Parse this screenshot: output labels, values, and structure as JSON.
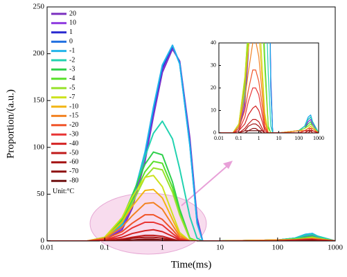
{
  "chart_data": {
    "type": "line",
    "x_label": "Time(ms)",
    "y_label": "Proportion/(a.u.)",
    "annotation": "Unit:°C",
    "log_x": true,
    "xlim": [
      0.01,
      1000
    ],
    "ylim": [
      0,
      250
    ],
    "xticks": [
      0.01,
      0.1,
      1,
      10,
      100,
      1000
    ],
    "yticks": [
      0,
      50,
      100,
      150,
      200,
      250
    ],
    "inset": {
      "xlim": [
        0.01,
        1000
      ],
      "ylim": [
        0,
        40
      ],
      "xticks": [
        0.01,
        0.1,
        1,
        10,
        100,
        1000
      ],
      "yticks": [
        0,
        10,
        20,
        30,
        40
      ]
    },
    "x": [
      0.01,
      0.05,
      0.1,
      0.2,
      0.3,
      0.5,
      0.7,
      1,
      1.5,
      2,
      3,
      4,
      5,
      10,
      100,
      200,
      300,
      400,
      500,
      1000
    ],
    "series": [
      {
        "name": "20",
        "color": "#7a2fbf",
        "values": [
          0,
          0,
          1,
          12,
          35,
          85,
          133,
          180,
          205,
          192,
          110,
          25,
          0,
          0,
          1,
          2,
          5,
          6,
          4,
          0
        ]
      },
      {
        "name": "10",
        "color": "#8e3ae0",
        "values": [
          0,
          0,
          2,
          14,
          38,
          88,
          136,
          183,
          207,
          191,
          106,
          23,
          0,
          0,
          1,
          3,
          5,
          6,
          4,
          0
        ]
      },
      {
        "name": "1",
        "color": "#2a2ad0",
        "values": [
          0,
          0,
          2,
          16,
          41,
          92,
          139,
          185,
          208,
          190,
          104,
          21,
          0,
          0,
          1,
          3,
          6,
          7,
          5,
          0
        ]
      },
      {
        "name": "0",
        "color": "#1f6fe0",
        "values": [
          0,
          0,
          2,
          16,
          42,
          93,
          141,
          187,
          209,
          190,
          103,
          20,
          0,
          0,
          1,
          3,
          7,
          8,
          5,
          0
        ]
      },
      {
        "name": "-1",
        "color": "#22b4ea",
        "values": [
          0,
          0,
          2,
          17,
          43,
          95,
          143,
          188,
          209,
          189,
          102,
          19,
          0,
          0,
          1,
          3,
          7,
          8,
          5,
          0
        ]
      },
      {
        "name": "-2",
        "color": "#22d2b0",
        "values": [
          0,
          0,
          3,
          19,
          45,
          90,
          115,
          128,
          109,
          77,
          26,
          3,
          0,
          0,
          1,
          3,
          6,
          7,
          5,
          0
        ]
      },
      {
        "name": "-3",
        "color": "#2fd04c",
        "values": [
          0,
          0,
          4,
          24,
          49,
          82,
          95,
          92,
          63,
          34,
          3,
          0,
          0,
          0,
          1,
          2,
          4,
          5,
          3,
          0
        ]
      },
      {
        "name": "-4",
        "color": "#58e02a",
        "values": [
          0,
          0,
          3,
          22,
          44,
          74,
          85,
          83,
          57,
          30,
          3,
          0,
          0,
          0,
          1,
          2,
          3,
          4,
          3,
          0
        ]
      },
      {
        "name": "-5",
        "color": "#98e22c",
        "values": [
          0,
          0,
          3,
          20,
          40,
          68,
          78,
          76,
          52,
          28,
          2,
          0,
          0,
          0,
          1,
          2,
          3,
          4,
          3,
          0
        ]
      },
      {
        "name": "-7",
        "color": "#cde21e",
        "values": [
          0,
          0,
          4,
          25,
          47,
          68,
          70,
          58,
          29,
          9,
          0,
          0,
          0,
          0,
          1,
          1,
          2,
          3,
          2,
          0
        ]
      },
      {
        "name": "-10",
        "color": "#f2b412",
        "values": [
          0,
          0,
          3,
          20,
          37,
          54,
          55,
          46,
          23,
          7,
          0,
          0,
          0,
          0,
          1,
          1,
          2,
          3,
          2,
          0
        ]
      },
      {
        "name": "-15",
        "color": "#f28222",
        "values": [
          0,
          0,
          3,
          15,
          27,
          40,
          41,
          34,
          17,
          5,
          0,
          0,
          0,
          0,
          1,
          1,
          2,
          2,
          2,
          0
        ]
      },
      {
        "name": "-20",
        "color": "#f05428",
        "values": [
          0,
          0,
          2,
          10,
          19,
          28,
          28,
          23,
          12,
          3,
          0,
          0,
          0,
          0,
          0,
          1,
          2,
          2,
          1,
          0
        ]
      },
      {
        "name": "-30",
        "color": "#e83434",
        "values": [
          0,
          0,
          1,
          7,
          14,
          20,
          20,
          17,
          8,
          2,
          0,
          0,
          0,
          0,
          0,
          1,
          1,
          2,
          1,
          0
        ]
      },
      {
        "name": "-40",
        "color": "#d42222",
        "values": [
          0,
          0,
          1,
          4,
          8,
          11,
          12,
          10,
          5,
          1,
          0,
          0,
          0,
          0,
          0,
          1,
          1,
          1,
          1,
          0
        ]
      },
      {
        "name": "-50",
        "color": "#c01a1a",
        "values": [
          0,
          0,
          0,
          2,
          4,
          6,
          6,
          5,
          2,
          0,
          0,
          0,
          0,
          0,
          0,
          0,
          1,
          1,
          1,
          0
        ]
      },
      {
        "name": "-60",
        "color": "#a51414",
        "values": [
          0,
          0,
          0,
          1,
          3,
          4,
          4,
          3,
          1,
          0,
          0,
          0,
          0,
          0,
          0,
          0,
          1,
          1,
          0,
          0
        ]
      },
      {
        "name": "-70",
        "color": "#8e1010",
        "values": [
          0,
          0,
          0,
          1,
          1,
          2,
          2,
          1,
          1,
          0,
          0,
          0,
          0,
          0,
          0,
          0,
          0,
          1,
          0,
          0
        ]
      },
      {
        "name": "-80",
        "color": "#6e1010",
        "values": [
          0,
          0,
          0,
          0,
          1,
          1,
          1,
          1,
          0,
          0,
          0,
          0,
          0,
          0,
          0,
          0,
          0,
          0,
          0,
          0
        ]
      }
    ]
  }
}
